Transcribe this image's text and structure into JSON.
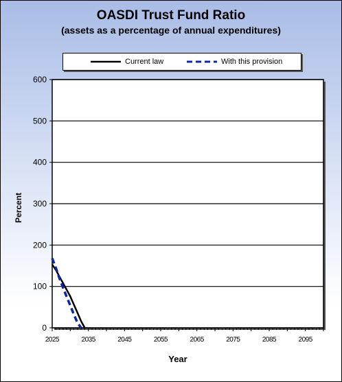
{
  "chart_data": {
    "type": "line",
    "title": "OASDI  Trust Fund Ratio",
    "subtitle": "(assets as a percentage of annual expenditures)",
    "xlabel": "Year",
    "ylabel": "Percent",
    "xlim": [
      2025,
      2100
    ],
    "ylim": [
      0,
      600
    ],
    "x_ticks": [
      2025,
      2035,
      2045,
      2055,
      2065,
      2075,
      2085,
      2095
    ],
    "y_ticks": [
      0,
      100,
      200,
      300,
      400,
      500,
      600
    ],
    "grid": "horizontal",
    "legend_position": "top",
    "series": [
      {
        "name": "Current law",
        "color": "#000000",
        "style": "solid",
        "x": [
          2025,
          2026,
          2027,
          2028,
          2029,
          2030,
          2031,
          2032,
          2033,
          2034
        ],
        "y": [
          153,
          140,
          124,
          108,
          92,
          76,
          56,
          36,
          16,
          0
        ]
      },
      {
        "name": "With this provision",
        "color": "#0a28a8",
        "style": "dashed",
        "x": [
          2025,
          2026,
          2027,
          2028,
          2029,
          2030,
          2031,
          2032,
          2033
        ],
        "y": [
          168,
          145,
          120,
          97,
          75,
          54,
          32,
          12,
          0
        ]
      }
    ]
  }
}
